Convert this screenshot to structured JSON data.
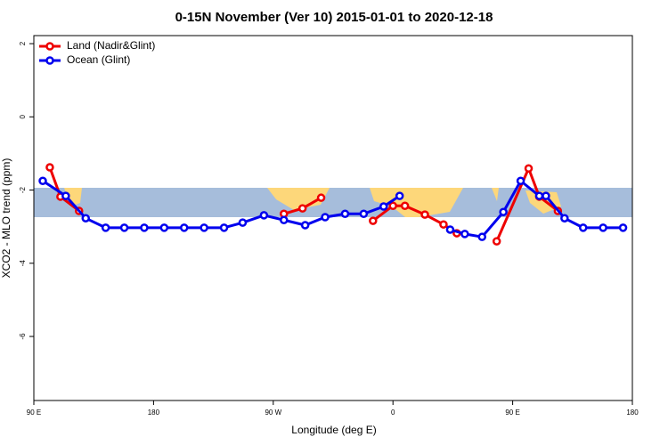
{
  "chart_data": {
    "type": "line",
    "title": "0-15N November (Ver 10)   2015-01-01 to 2020-12-18",
    "x_label": "Longitude (deg E)",
    "y_label": "XCO2 - MLO trend (ppm)",
    "xlim": [
      90,
      540
    ],
    "ylim": [
      -7.75,
      2.22
    ],
    "xticks": [
      {
        "value": 90,
        "label": "90 E"
      },
      180,
      {
        "value": 270,
        "label": "90 W"
      },
      {
        "value": 360,
        "label": "0"
      },
      {
        "value": 450,
        "label": "90 E"
      },
      {
        "value": 540,
        "label": "180"
      }
    ],
    "yticks": [
      -6,
      -4,
      -2,
      0,
      2
    ],
    "legend": "top-left",
    "series": [
      {
        "name": "Land (Nadir&Glint)",
        "color": "#ee0000",
        "x": [
          102,
          110,
          124,
          200,
          278,
          292,
          306,
          330,
          345,
          360,
          369,
          384,
          398,
          408,
          420,
          438,
          462,
          470,
          484
        ],
        "values": [
          -1.38,
          -2.18,
          -2.57,
          null,
          -2.65,
          -2.5,
          -2.21,
          null,
          -2.84,
          -2.43,
          -2.43,
          -2.67,
          -2.94,
          -3.18,
          null,
          -3.4,
          -1.41,
          -2.18,
          -2.57
        ]
      },
      {
        "name": "Ocean (Glint)",
        "color": "#0000ee",
        "x": [
          96.7,
          114,
          129,
          144,
          158,
          173,
          188,
          203,
          218,
          233,
          247,
          263,
          278,
          294,
          309,
          324,
          338,
          353,
          365,
          385,
          403,
          414,
          427,
          443,
          456,
          470,
          475,
          489,
          503,
          518,
          533
        ],
        "values": [
          -1.75,
          -2.16,
          -2.77,
          -3.03,
          -3.03,
          -3.03,
          -3.03,
          -3.03,
          -3.03,
          -3.03,
          -2.89,
          -2.69,
          -2.82,
          -2.96,
          -2.74,
          -2.65,
          -2.65,
          -2.45,
          -2.16,
          null,
          -3.08,
          -3.2,
          -3.28,
          -2.6,
          -1.75,
          -2.16,
          -2.16,
          -2.77,
          -3.03,
          -3.03,
          -3.03
        ]
      }
    ]
  }
}
